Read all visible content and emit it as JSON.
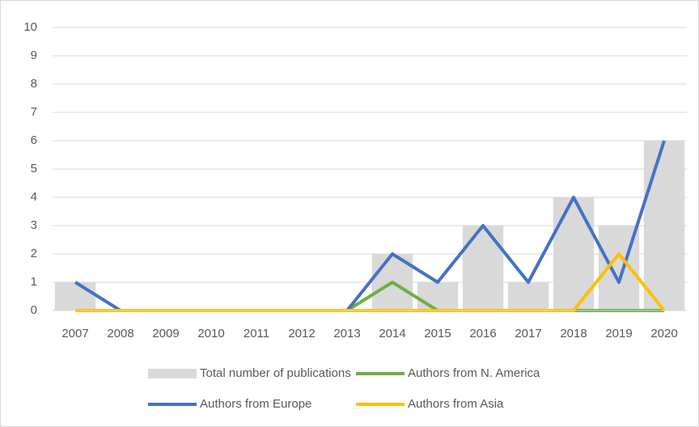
{
  "chart_data": {
    "type": "bar",
    "categories": [
      "2007",
      "2008",
      "2009",
      "2010",
      "2011",
      "2012",
      "2013",
      "2014",
      "2015",
      "2016",
      "2017",
      "2018",
      "2019",
      "2020"
    ],
    "series": [
      {
        "name": "Total number of publications",
        "type": "bar",
        "color": "#d9d9d9",
        "values": [
          1,
          0,
          0,
          0,
          0,
          0,
          0,
          2,
          1,
          3,
          1,
          4,
          3,
          6
        ]
      },
      {
        "name": "Authors from N. America",
        "type": "line",
        "color": "#70ad47",
        "values": [
          0,
          0,
          0,
          0,
          0,
          0,
          0,
          1,
          0,
          0,
          0,
          0,
          0,
          0
        ]
      },
      {
        "name": "Authors from Europe",
        "type": "line",
        "color": "#4472c4",
        "values": [
          1,
          0,
          0,
          0,
          0,
          0,
          0,
          2,
          1,
          3,
          1,
          4,
          1,
          6
        ]
      },
      {
        "name": "Authors from Asia",
        "type": "line",
        "color": "#ffc000",
        "values": [
          0,
          0,
          0,
          0,
          0,
          0,
          0,
          0,
          0,
          0,
          0,
          0,
          2,
          0
        ]
      }
    ],
    "ylim": [
      0,
      10
    ],
    "yticks": [
      0,
      1,
      2,
      3,
      4,
      5,
      6,
      7,
      8,
      9,
      10
    ],
    "grid": true,
    "legend": "bottom"
  }
}
